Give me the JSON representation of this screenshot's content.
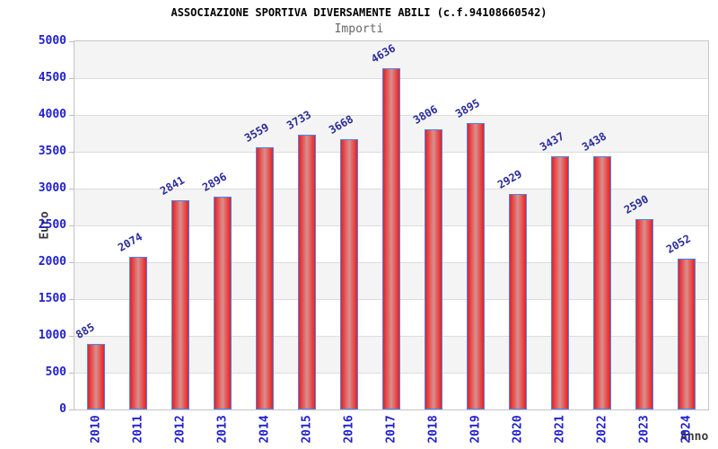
{
  "chart_data": {
    "type": "bar",
    "title": "ASSOCIAZIONE SPORTIVA DIVERSAMENTE ABILI (c.f.94108660542)",
    "subtitle": "Importi",
    "xlabel": "Anno",
    "ylabel": "Euro",
    "categories": [
      "2010",
      "2011",
      "2012",
      "2013",
      "2014",
      "2015",
      "2016",
      "2017",
      "2018",
      "2019",
      "2020",
      "2021",
      "2022",
      "2023",
      "2024"
    ],
    "values": [
      885,
      2074,
      2841,
      2896,
      3559,
      3733,
      3668,
      4636,
      3806,
      3895,
      2929,
      3437,
      3438,
      2590,
      2052
    ],
    "ylim": [
      0,
      5000
    ],
    "yticks": [
      0,
      500,
      1000,
      1500,
      2000,
      2500,
      3000,
      3500,
      4000,
      4500,
      5000
    ],
    "grid": true,
    "legend": null,
    "layout": {
      "bands": "horizontal alternating gray/white every 500",
      "x_tick_rotation": -90,
      "value_label_rotation": -30
    },
    "colors": {
      "tick_label": "#2121ce",
      "value_label": "#2b2b99",
      "bar_edge": "#4a86e8",
      "bar_main": "#e52124",
      "bar_mid": "#e4605f",
      "bar_light": "#d69090",
      "band_gray": "#f4f4f4",
      "band_white": "#ffffff",
      "gridline": "#dcdcdc",
      "plot_border": "#c4c4c4",
      "axis_title": "#3a3a3a",
      "title": "#000000",
      "subtitle": "#666666"
    }
  }
}
